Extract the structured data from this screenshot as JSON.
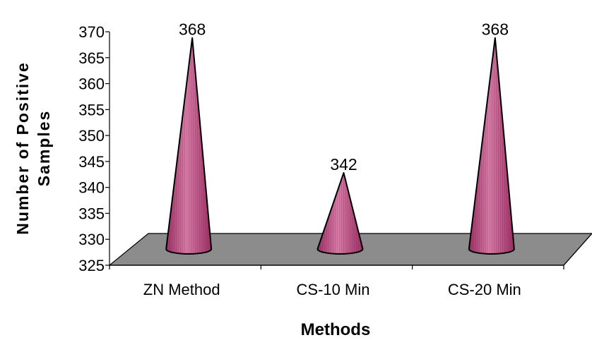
{
  "chart_data": {
    "type": "bar",
    "style": "3d-cone",
    "categories": [
      "ZN Method",
      "CS-10 Min",
      "CS-20 Min"
    ],
    "values": [
      368,
      342,
      368
    ],
    "data_labels": [
      "368",
      "342",
      "368"
    ],
    "yticks": [
      "325",
      "330",
      "335",
      "340",
      "345",
      "350",
      "355",
      "360",
      "365",
      "370"
    ],
    "ylim": [
      325,
      370
    ],
    "xlabel": "Methods",
    "ylabel_lines": [
      "Number of Positive",
      "Samples"
    ],
    "grid": false,
    "legend": "none",
    "colors": {
      "cone": "#9e2f66",
      "cone_highlight": "#d77aa6",
      "floor": "#8c8c8c"
    }
  }
}
